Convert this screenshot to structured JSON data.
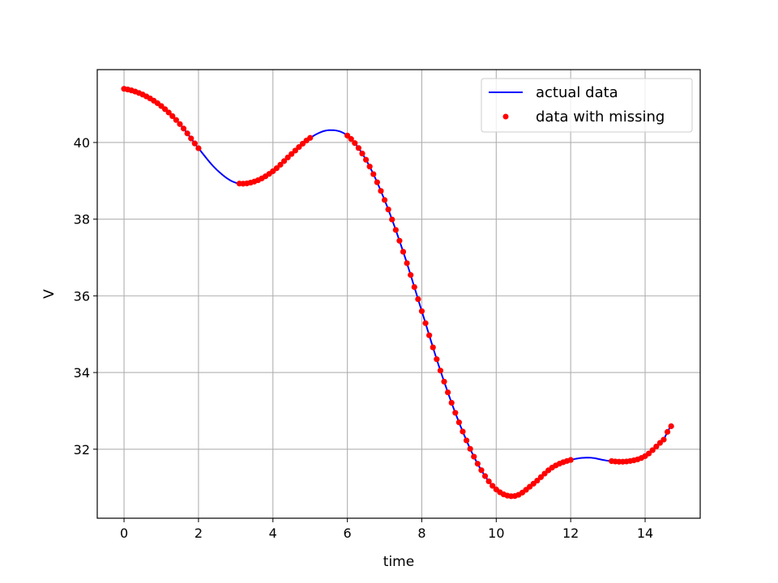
{
  "chart_data": {
    "type": "line",
    "title": "",
    "xlabel": "time",
    "ylabel": "V",
    "xlim": [
      -0.72,
      15.48
    ],
    "ylim": [
      30.2,
      41.9
    ],
    "xticks": [
      0,
      2,
      4,
      6,
      8,
      10,
      12,
      14
    ],
    "yticks": [
      32,
      34,
      36,
      38,
      40
    ],
    "grid": true,
    "legend": {
      "placement": "top-right"
    },
    "series": [
      {
        "name": "actual data",
        "style": "line",
        "color": "#0000ff",
        "x": [
          0,
          0.5,
          1,
          1.5,
          2,
          2.5,
          3,
          3.5,
          4,
          4.5,
          5,
          5.5,
          6,
          6.5,
          7,
          7.5,
          8,
          8.5,
          9,
          9.5,
          10,
          10.5,
          11,
          11.5,
          12,
          12.5,
          13,
          13.5,
          14,
          14.5,
          14.7
        ],
        "y": [
          41.4,
          41.25,
          40.95,
          40.48,
          39.85,
          39.28,
          38.95,
          38.98,
          39.25,
          39.7,
          40.12,
          40.32,
          40.18,
          39.55,
          38.5,
          37.15,
          35.6,
          34.05,
          32.7,
          31.62,
          30.95,
          30.78,
          31.1,
          31.52,
          31.72,
          31.78,
          31.7,
          31.68,
          31.82,
          32.25,
          32.6
        ]
      },
      {
        "name": "data with missing",
        "style": "markers",
        "color": "#ff0000",
        "segments": [
          {
            "x_start": 0,
            "x_end": 2,
            "step": 0.1
          },
          {
            "x_start": 3.1,
            "x_end": 5,
            "step": 0.1
          },
          {
            "x_start": 6,
            "x_end": 12,
            "step": 0.1
          },
          {
            "x_start": 13.1,
            "x_end": 14.7,
            "step": 0.1
          }
        ]
      }
    ]
  },
  "colors": {
    "actual_line": "#0000ff",
    "missing_markers": "#ff0000",
    "grid": "#b0b0b0",
    "axes": "#000000"
  }
}
